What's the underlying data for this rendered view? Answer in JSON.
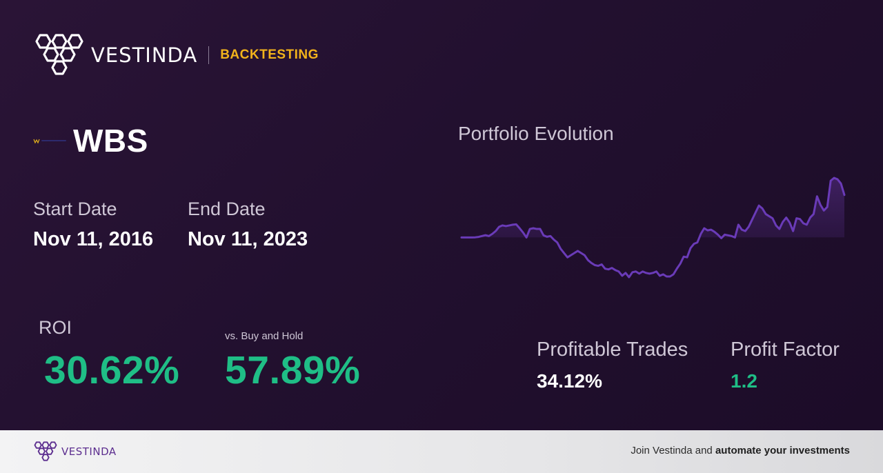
{
  "brand": {
    "name": "VESTINDA",
    "tag": "BACKTESTING",
    "logo_icon": "hexagon-cluster-icon",
    "tag_color": "#f2b31b"
  },
  "ticker": {
    "symbol": "WBS",
    "logo_icon": "company-logo-icon"
  },
  "dates": {
    "start_label": "Start Date",
    "start_value": "Nov 11, 2016",
    "end_label": "End Date",
    "end_value": "Nov 11, 2023"
  },
  "roi": {
    "label": "ROI",
    "value": "30.62%",
    "vs_label": "vs. Buy and Hold",
    "vs_value": "57.89%",
    "color": "#1fbe86"
  },
  "chart": {
    "title": "Portfolio Evolution",
    "line_color": "#6a3bb8"
  },
  "stats": {
    "profitable_label": "Profitable Trades",
    "profitable_value": "34.12%",
    "profit_factor_label": "Profit Factor",
    "profit_factor_value": "1.2",
    "profit_factor_color": "#1fbe86"
  },
  "footer": {
    "brand_name": "VESTINDA",
    "cta_prefix": "Join Vestinda and ",
    "cta_bold": "automate your investments"
  },
  "chart_data": {
    "type": "area",
    "title": "Portfolio Evolution",
    "baseline": 0,
    "x": [
      0,
      1,
      2,
      3,
      4,
      5,
      6,
      7,
      8,
      9,
      10,
      11,
      12,
      13,
      14,
      15,
      16,
      17,
      18,
      19,
      20,
      21,
      22,
      23,
      24,
      25,
      26,
      27,
      28,
      29,
      30,
      31,
      32,
      33,
      34,
      35,
      36,
      37,
      38,
      39,
      40,
      41,
      42,
      43,
      44,
      45,
      46,
      47,
      48,
      49,
      50,
      51,
      52,
      53,
      54,
      55,
      56,
      57,
      58,
      59,
      60,
      61,
      62,
      63,
      64,
      65,
      66,
      67,
      68,
      69,
      70,
      71,
      72,
      73,
      74,
      75,
      76,
      77,
      78,
      79,
      80,
      81,
      82,
      83,
      84,
      85,
      86,
      87,
      88,
      89,
      90,
      91,
      92,
      93,
      94,
      95,
      96,
      97,
      98,
      99,
      100,
      101,
      102,
      103,
      104,
      105,
      106,
      107,
      108,
      109,
      110,
      111,
      112
    ],
    "series": [
      {
        "values": [
          0,
          0,
          0,
          0,
          0.2,
          0.8,
          2,
          3.2,
          2,
          5,
          9,
          15,
          17,
          16,
          17,
          18,
          18.5,
          13,
          7,
          0,
          12,
          13,
          12,
          12,
          3,
          1,
          2,
          -3,
          -7,
          -16,
          -22,
          -28,
          -25,
          -22,
          -19,
          -22,
          -25,
          -32,
          -36,
          -39,
          -40,
          -38,
          -44,
          -45,
          -43,
          -46,
          -48,
          -54,
          -50,
          -56,
          -49,
          -48,
          -51,
          -48,
          -50,
          -51,
          -50,
          -48,
          -54,
          -52,
          -55,
          -55,
          -52,
          -44,
          -37,
          -27,
          -28,
          -15,
          -9,
          -7,
          5,
          13,
          10,
          11,
          8,
          4,
          -1,
          4,
          3,
          2,
          0,
          18,
          11,
          9,
          15,
          25,
          35,
          45,
          41,
          33,
          30,
          27,
          17,
          12,
          22,
          28,
          21,
          9,
          27,
          26,
          20,
          18,
          28,
          33,
          58,
          46,
          38,
          43,
          80,
          84,
          82,
          76,
          60
        ]
      }
    ]
  }
}
